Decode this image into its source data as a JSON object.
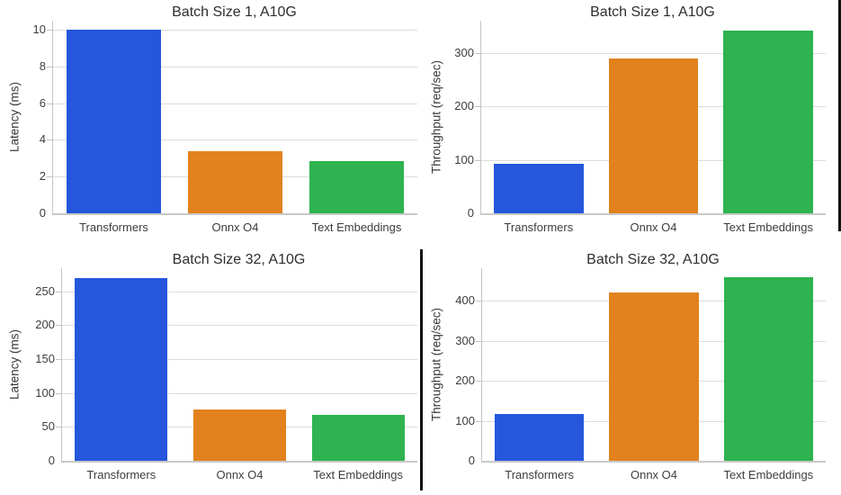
{
  "figure": {
    "background": "#ffffff",
    "description_colors": {
      "grid": "#dcdcdc",
      "spine": "#c4c4c4",
      "text": "#3d3d3d",
      "divider": "#111111"
    }
  },
  "chart_data": [
    {
      "type": "bar",
      "title": "Batch Size 1, A10G",
      "ylabel": "Latency (ms)",
      "xlabel": "",
      "categories": [
        "Transformers",
        "Onnx O4",
        "Text Embeddings"
      ],
      "values": [
        10.0,
        3.4,
        2.85
      ],
      "bar_colors": [
        "#2556dc",
        "#e2821e",
        "#2eb350"
      ],
      "ylim": [
        0,
        10.5
      ],
      "yticks": [
        0,
        2,
        4,
        6,
        8,
        10
      ],
      "grid": true,
      "legend": "none"
    },
    {
      "type": "bar",
      "title": "Batch Size 1, A10G",
      "ylabel": "Throughput (req/sec)",
      "xlabel": "",
      "categories": [
        "Transformers",
        "Onnx O4",
        "Text Embeddings"
      ],
      "values": [
        92,
        290,
        343
      ],
      "bar_colors": [
        "#2556dc",
        "#e2821e",
        "#2eb350"
      ],
      "ylim": [
        0,
        361
      ],
      "yticks": [
        0,
        100,
        200,
        300
      ],
      "grid": true,
      "legend": "none"
    },
    {
      "type": "bar",
      "title": "Batch Size 32, A10G",
      "ylabel": "Latency (ms)",
      "xlabel": "",
      "categories": [
        "Transformers",
        "Onnx O4",
        "Text Embeddings"
      ],
      "values": [
        270,
        76,
        68
      ],
      "bar_colors": [
        "#2556dc",
        "#e2821e",
        "#2eb350"
      ],
      "ylim": [
        0,
        284
      ],
      "yticks": [
        0,
        50,
        100,
        150,
        200,
        250
      ],
      "grid": true,
      "legend": "none"
    },
    {
      "type": "bar",
      "title": "Batch Size 32, A10G",
      "ylabel": "Throughput (req/sec)",
      "xlabel": "",
      "categories": [
        "Transformers",
        "Onnx O4",
        "Text Embeddings"
      ],
      "values": [
        117,
        420,
        458
      ],
      "bar_colors": [
        "#2556dc",
        "#e2821e",
        "#2eb350"
      ],
      "ylim": [
        0,
        481
      ],
      "yticks": [
        0,
        100,
        200,
        300,
        400
      ],
      "grid": true,
      "legend": "none"
    }
  ]
}
